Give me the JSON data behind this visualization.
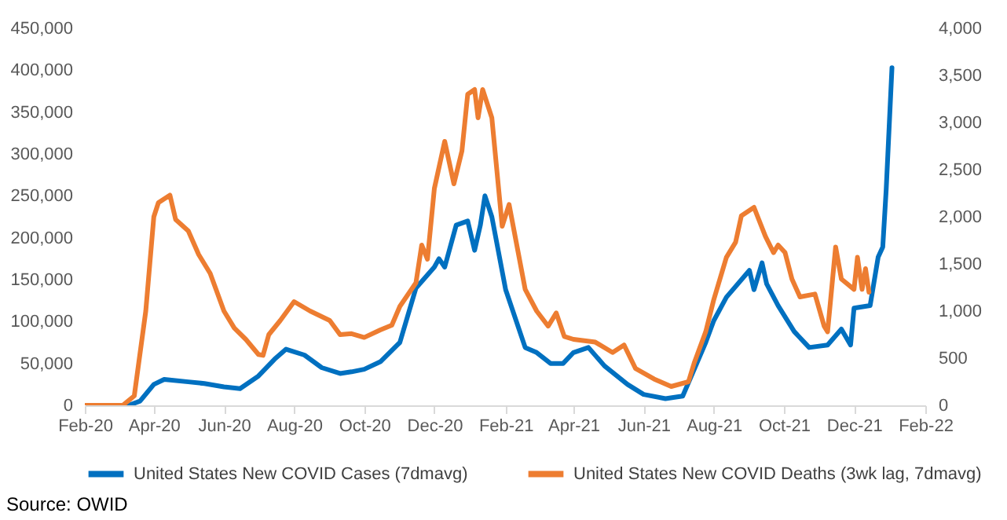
{
  "chart_data": {
    "type": "line",
    "annotations": [
      "Source: OWID"
    ],
    "legend": "bottom",
    "grid": false,
    "line_style": "solid",
    "marker": "none",
    "xlim": [
      "2020-02-01",
      "2022-02-01"
    ],
    "xticks": [
      {
        "value": "2020-02-01",
        "label": "Feb-20"
      },
      {
        "value": "2020-04-01",
        "label": "Apr-20"
      },
      {
        "value": "2020-06-01",
        "label": "Jun-20"
      },
      {
        "value": "2020-08-01",
        "label": "Aug-20"
      },
      {
        "value": "2020-10-01",
        "label": "Oct-20"
      },
      {
        "value": "2020-12-01",
        "label": "Dec-20"
      },
      {
        "value": "2021-02-01",
        "label": "Feb-21"
      },
      {
        "value": "2021-04-01",
        "label": "Apr-21"
      },
      {
        "value": "2021-06-01",
        "label": "Jun-21"
      },
      {
        "value": "2021-08-01",
        "label": "Aug-21"
      },
      {
        "value": "2021-10-01",
        "label": "Oct-21"
      },
      {
        "value": "2021-12-01",
        "label": "Dec-21"
      },
      {
        "value": "2022-02-01",
        "label": "Feb-22"
      }
    ],
    "ylim": [
      0,
      450000
    ],
    "yticks": [
      {
        "value": 0,
        "label": "0"
      },
      {
        "value": 50000,
        "label": "50,000"
      },
      {
        "value": 100000,
        "label": "100,000"
      },
      {
        "value": 150000,
        "label": "150,000"
      },
      {
        "value": 200000,
        "label": "200,000"
      },
      {
        "value": 250000,
        "label": "250,000"
      },
      {
        "value": 300000,
        "label": "300,000"
      },
      {
        "value": 350000,
        "label": "350,000"
      },
      {
        "value": 400000,
        "label": "400,000"
      },
      {
        "value": 450000,
        "label": "450,000"
      }
    ],
    "y2lim": [
      0,
      4000
    ],
    "y2ticks": [
      {
        "value": 0,
        "label": "0"
      },
      {
        "value": 500,
        "label": "500"
      },
      {
        "value": 1000,
        "label": "1,000"
      },
      {
        "value": 1500,
        "label": "1,500"
      },
      {
        "value": 2000,
        "label": "2,000"
      },
      {
        "value": 2500,
        "label": "2,500"
      },
      {
        "value": 3000,
        "label": "3,000"
      },
      {
        "value": 3500,
        "label": "3,500"
      },
      {
        "value": 4000,
        "label": "4,000"
      }
    ],
    "series": [
      {
        "name": "United States New COVID Cases (7dmavg)",
        "color": "#0070c0",
        "x": [
          "2020-02-01",
          "2020-03-10",
          "2020-03-20",
          "2020-04-01",
          "2020-04-10",
          "2020-05-01",
          "2020-05-15",
          "2020-06-01",
          "2020-06-15",
          "2020-07-01",
          "2020-07-15",
          "2020-07-25",
          "2020-08-10",
          "2020-08-25",
          "2020-09-10",
          "2020-09-20",
          "2020-10-01",
          "2020-10-15",
          "2020-11-01",
          "2020-11-15",
          "2020-12-01",
          "2020-12-05",
          "2020-12-10",
          "2020-12-20",
          "2020-12-30",
          "2021-01-05",
          "2021-01-10",
          "2021-01-14",
          "2021-01-20",
          "2021-02-01",
          "2021-02-18",
          "2021-02-28",
          "2021-03-12",
          "2021-03-23",
          "2021-04-01",
          "2021-04-14",
          "2021-04-28",
          "2021-05-18",
          "2021-06-01",
          "2021-06-20",
          "2021-07-05",
          "2021-07-25",
          "2021-08-01",
          "2021-08-12",
          "2021-09-01",
          "2021-09-05",
          "2021-09-12",
          "2021-09-16",
          "2021-09-26",
          "2021-10-10",
          "2021-10-23",
          "2021-11-08",
          "2021-11-20",
          "2021-11-28",
          "2021-12-01",
          "2021-12-15",
          "2021-12-22",
          "2021-12-26",
          "2021-12-29",
          "2022-01-03"
        ],
        "values": [
          0,
          0,
          5000,
          25000,
          31000,
          28000,
          26000,
          22000,
          20000,
          35000,
          55000,
          67000,
          60000,
          45000,
          38000,
          40000,
          43000,
          52000,
          75000,
          140000,
          165000,
          175000,
          165000,
          215000,
          220000,
          185000,
          215000,
          250000,
          225000,
          138000,
          69000,
          63000,
          50000,
          50000,
          63000,
          69000,
          47000,
          25000,
          13000,
          8000,
          11000,
          75000,
          101000,
          129000,
          161000,
          138000,
          170000,
          145000,
          119000,
          88000,
          69000,
          72000,
          91000,
          72000,
          116000,
          119000,
          177000,
          189000,
          258000,
          403000
        ]
      },
      {
        "name": "United States New COVID Deaths (3wk lag, 7dmavg)",
        "color": "#ed7d31",
        "axis": "y2",
        "x": [
          "2020-02-01",
          "2020-03-05",
          "2020-03-15",
          "2020-03-25",
          "2020-04-01",
          "2020-04-05",
          "2020-04-15",
          "2020-04-20",
          "2020-05-01",
          "2020-05-10",
          "2020-05-20",
          "2020-06-01",
          "2020-06-10",
          "2020-06-20",
          "2020-07-01",
          "2020-07-05",
          "2020-07-10",
          "2020-07-20",
          "2020-08-01",
          "2020-08-15",
          "2020-09-01",
          "2020-09-10",
          "2020-09-20",
          "2020-10-01",
          "2020-10-15",
          "2020-10-25",
          "2020-11-01",
          "2020-11-15",
          "2020-11-20",
          "2020-11-25",
          "2020-12-01",
          "2020-12-10",
          "2020-12-18",
          "2020-12-25",
          "2020-12-30",
          "2021-01-05",
          "2021-01-08",
          "2021-01-12",
          "2021-01-20",
          "2021-01-29",
          "2021-02-04",
          "2021-02-18",
          "2021-02-28",
          "2021-03-10",
          "2021-03-17",
          "2021-03-24",
          "2021-04-01",
          "2021-04-20",
          "2021-05-05",
          "2021-05-15",
          "2021-05-25",
          "2021-06-10",
          "2021-06-25",
          "2021-07-10",
          "2021-07-15",
          "2021-07-25",
          "2021-08-01",
          "2021-08-12",
          "2021-08-20",
          "2021-08-25",
          "2021-09-05",
          "2021-09-15",
          "2021-09-22",
          "2021-09-26",
          "2021-10-02",
          "2021-10-08",
          "2021-10-15",
          "2021-10-28",
          "2021-11-05",
          "2021-11-08",
          "2021-11-15",
          "2021-11-20",
          "2021-12-01",
          "2021-12-04",
          "2021-12-08",
          "2021-12-11",
          "2021-12-14"
        ],
        "values": [
          0,
          0,
          100,
          1000,
          2000,
          2150,
          2230,
          1970,
          1850,
          1600,
          1400,
          1000,
          820,
          700,
          540,
          530,
          750,
          900,
          1100,
          1000,
          900,
          750,
          760,
          720,
          800,
          850,
          1050,
          1300,
          1700,
          1550,
          2300,
          2800,
          2350,
          2700,
          3300,
          3350,
          3050,
          3350,
          3050,
          1900,
          2130,
          1230,
          1000,
          840,
          980,
          730,
          700,
          670,
          560,
          640,
          390,
          280,
          200,
          250,
          450,
          780,
          1120,
          1570,
          1730,
          2010,
          2100,
          1790,
          1620,
          1700,
          1620,
          1340,
          1150,
          1180,
          840,
          780,
          1680,
          1340,
          1230,
          1570,
          1230,
          1450,
          1200
        ]
      }
    ]
  }
}
